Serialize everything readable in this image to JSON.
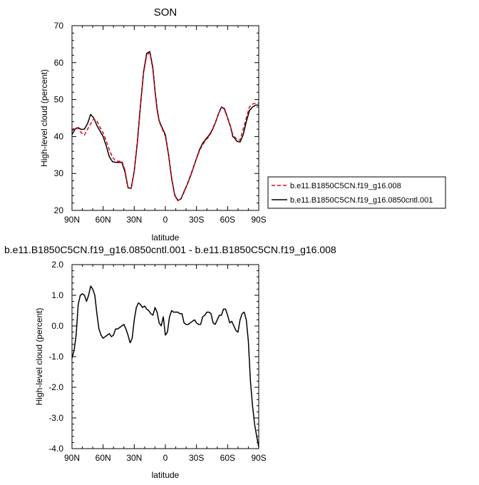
{
  "colors": {
    "case": "#e8001c",
    "control": "#000000",
    "axis": "#000000"
  },
  "chart_data": [
    {
      "type": "line",
      "title": "SON",
      "xlabel": "latitude",
      "ylabel": "High-level cloud (percent)",
      "xlim": [
        90,
        -90
      ],
      "ylim": [
        20,
        70
      ],
      "xticks": [
        90,
        60,
        30,
        0,
        -30,
        -60,
        -90
      ],
      "xtick_labels": [
        "90N",
        "60N",
        "30N",
        "0",
        "30S",
        "60S",
        "90S"
      ],
      "yticks": [
        20,
        30,
        40,
        50,
        60,
        70
      ],
      "ytick_labels": [
        "20",
        "30",
        "40",
        "50",
        "60",
        "70"
      ],
      "legend_position": "right-bottom",
      "series": [
        {
          "name": "b.e11.B1850C5CN.f19_g16.008",
          "style": "dashed",
          "x": [
            90,
            87,
            84,
            81,
            78,
            75,
            72,
            69,
            66,
            63,
            60,
            57,
            54,
            51,
            48,
            45,
            42,
            39,
            36,
            33,
            30,
            27,
            24,
            21,
            18,
            15,
            12,
            10,
            8,
            6,
            3,
            0,
            -3,
            -6,
            -9,
            -12,
            -15,
            -18,
            -21,
            -24,
            -27,
            -30,
            -33,
            -36,
            -39,
            -42,
            -45,
            -48,
            -51,
            -54,
            -57,
            -60,
            -63,
            -65,
            -67,
            -69,
            -72,
            -75,
            -78,
            -81,
            -84,
            -87,
            -90
          ],
          "y": [
            41.5,
            42.5,
            42.2,
            41.0,
            40.4,
            42.0,
            43.4,
            44.8,
            44.2,
            42.5,
            41.0,
            38.8,
            36.4,
            34.4,
            33.4,
            33.3,
            33.4,
            31.0,
            26.3,
            25.9,
            30.5,
            38.0,
            48.0,
            57.0,
            62.0,
            62.7,
            58.0,
            52.0,
            47.0,
            44.0,
            42.0,
            40.0,
            35.0,
            28.5,
            24.0,
            22.6,
            23.2,
            25.2,
            27.0,
            29.0,
            31.5,
            34.0,
            36.2,
            37.8,
            39.0,
            40.0,
            41.5,
            43.5,
            46.0,
            47.9,
            47.2,
            45.0,
            42.5,
            40.5,
            39.8,
            39.2,
            39.0,
            42.0,
            45.0,
            48.0,
            48.8,
            49.0,
            49.0
          ]
        },
        {
          "name": "b.e11.B1850C5CN.f19_g16.0850cntl.001",
          "style": "solid",
          "x": [
            90,
            87,
            84,
            81,
            78,
            75,
            72,
            69,
            66,
            63,
            60,
            57,
            54,
            51,
            48,
            45,
            42,
            39,
            36,
            33,
            30,
            27,
            24,
            21,
            18,
            15,
            12,
            10,
            8,
            6,
            3,
            0,
            -3,
            -6,
            -9,
            -12,
            -15,
            -18,
            -21,
            -24,
            -27,
            -30,
            -33,
            -36,
            -39,
            -42,
            -45,
            -48,
            -51,
            -54,
            -57,
            -60,
            -63,
            -65,
            -67,
            -69,
            -72,
            -75,
            -78,
            -81,
            -84,
            -87,
            -90
          ],
          "y": [
            40.5,
            42.0,
            42.4,
            41.9,
            42.0,
            43.5,
            46.0,
            45.0,
            43.0,
            41.5,
            40.0,
            37.5,
            34.5,
            33.2,
            33.0,
            33.0,
            33.0,
            30.5,
            26.1,
            26.0,
            30.7,
            38.5,
            48.5,
            57.5,
            62.5,
            63.0,
            58.5,
            52.5,
            47.5,
            44.3,
            42.3,
            40.5,
            35.2,
            28.8,
            24.2,
            22.7,
            23.1,
            25.0,
            27.0,
            29.2,
            31.6,
            34.1,
            36.5,
            38.2,
            39.3,
            40.3,
            41.7,
            43.6,
            46.0,
            48.0,
            47.5,
            45.0,
            42.5,
            40.0,
            39.5,
            38.7,
            38.5,
            40.5,
            44.0,
            47.0,
            48.0,
            48.5,
            48.5
          ]
        }
      ]
    },
    {
      "type": "line",
      "title": "b.e11.B1850C5CN.f19_g16.0850cntl.001 - b.e11.B1850C5CN.f19_g16.008",
      "xlabel": "latitude",
      "ylabel": "High-level cloud (percent)",
      "xlim": [
        90,
        -90
      ],
      "ylim": [
        -4.0,
        2.0
      ],
      "xticks": [
        90,
        60,
        30,
        0,
        -30,
        -60,
        -90
      ],
      "xtick_labels": [
        "90N",
        "60N",
        "30N",
        "0",
        "30S",
        "60S",
        "90S"
      ],
      "yticks": [
        2.0,
        1.0,
        0.0,
        -1.0,
        -2.0,
        -3.0,
        -4.0
      ],
      "ytick_labels": [
        "2.0",
        "1.0",
        "0.0",
        "-1.0",
        "-2.0",
        "-3.0",
        "-4.0"
      ],
      "series": [
        {
          "name": "",
          "style": "solid",
          "x": [
            90,
            88,
            86,
            84,
            82,
            80,
            78,
            76,
            74,
            72,
            70,
            68,
            66,
            64,
            62,
            60,
            58,
            56,
            54,
            52,
            50,
            48,
            46,
            44,
            42,
            40,
            38,
            36,
            34,
            32,
            30,
            28,
            26,
            24,
            22,
            20,
            18,
            16,
            14,
            12,
            10,
            8,
            6,
            4,
            2,
            0,
            -2,
            -4,
            -6,
            -8,
            -10,
            -12,
            -14,
            -16,
            -18,
            -20,
            -22,
            -24,
            -26,
            -28,
            -30,
            -32,
            -34,
            -36,
            -38,
            -40,
            -42,
            -44,
            -46,
            -48,
            -50,
            -52,
            -54,
            -56,
            -58,
            -60,
            -62,
            -64,
            -66,
            -68,
            -70,
            -72,
            -74,
            -76,
            -78,
            -80,
            -82,
            -84,
            -86,
            -88,
            -90
          ],
          "y": [
            -1.05,
            -0.8,
            -0.3,
            0.7,
            1.0,
            1.05,
            1.0,
            0.8,
            1.0,
            1.3,
            1.2,
            1.0,
            0.4,
            -0.1,
            -0.3,
            -0.4,
            -0.35,
            -0.3,
            -0.25,
            -0.35,
            -0.3,
            -0.1,
            -0.1,
            -0.05,
            0.0,
            0.05,
            -0.1,
            -0.3,
            -0.55,
            -0.4,
            0.2,
            0.6,
            0.75,
            0.7,
            0.6,
            0.65,
            0.55,
            0.5,
            0.4,
            0.35,
            0.6,
            0.45,
            0.1,
            0.0,
            0.3,
            -0.3,
            -0.2,
            0.3,
            0.5,
            0.45,
            0.45,
            0.45,
            0.4,
            0.4,
            0.1,
            0.05,
            0.05,
            0.1,
            0.15,
            0.2,
            0.1,
            0.05,
            0.05,
            0.3,
            0.35,
            0.45,
            0.45,
            0.4,
            0.1,
            0.05,
            0.2,
            0.35,
            0.35,
            0.55,
            0.55,
            0.35,
            0.1,
            0.15,
            0.0,
            -0.15,
            -0.2,
            0.2,
            0.4,
            0.45,
            0.2,
            -0.5,
            -1.8,
            -2.6,
            -3.2,
            -3.6,
            -3.95
          ]
        }
      ]
    }
  ]
}
